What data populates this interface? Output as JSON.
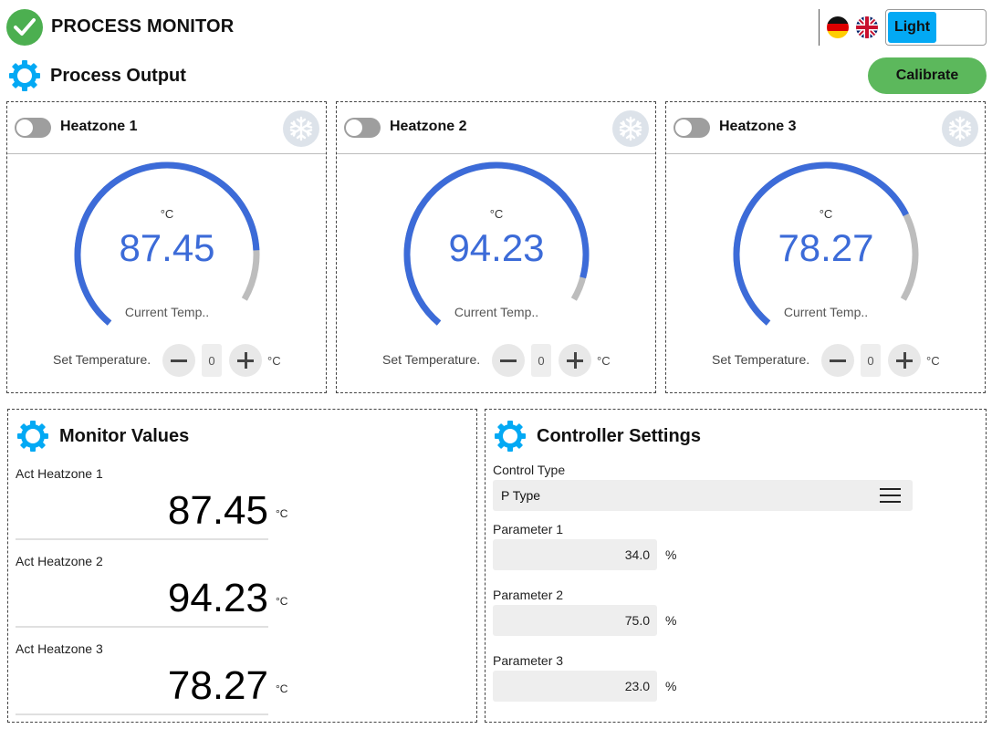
{
  "header": {
    "title": "PROCESS MONITOR",
    "theme_label": "Light",
    "languages": [
      "de",
      "en"
    ]
  },
  "process_output": {
    "title": "Process Output",
    "calibrate_label": "Calibrate"
  },
  "heatzones": [
    {
      "name": "Heatzone 1",
      "unit": "°C",
      "value": "87.45",
      "current_label": "Current Temp..",
      "set_label": "Set Temperature.",
      "set_value": "0",
      "set_unit": "°C",
      "gauge_fill": 0.874
    },
    {
      "name": "Heatzone 2",
      "unit": "°C",
      "value": "94.23",
      "current_label": "Current Temp..",
      "set_label": "Set Temperature.",
      "set_value": "0",
      "set_unit": "°C",
      "gauge_fill": 0.942
    },
    {
      "name": "Heatzone 3",
      "unit": "°C",
      "value": "78.27",
      "current_label": "Current Temp..",
      "set_label": "Set Temperature.",
      "set_value": "0",
      "set_unit": "°C",
      "gauge_fill": 0.783
    }
  ],
  "monitor": {
    "title": "Monitor Values",
    "items": [
      {
        "label": "Act Heatzone 1",
        "value": "87.45",
        "unit": "°C"
      },
      {
        "label": "Act Heatzone 2",
        "value": "94.23",
        "unit": "°C"
      },
      {
        "label": "Act Heatzone 3",
        "value": "78.27",
        "unit": "°C"
      }
    ]
  },
  "controller": {
    "title": "Controller Settings",
    "control_type_label": "Control Type",
    "control_type_value": "P Type",
    "params": [
      {
        "label": "Parameter 1",
        "value": "34.0",
        "unit": "%"
      },
      {
        "label": "Parameter 2",
        "value": "75.0",
        "unit": "%"
      },
      {
        "label": "Parameter 3",
        "value": "23.0",
        "unit": "%"
      }
    ]
  },
  "colors": {
    "accent_blue": "#3c6bd8",
    "gauge_rest": "#bdbdbd",
    "green": "#5cb85c",
    "gear": "#03a9f4"
  }
}
